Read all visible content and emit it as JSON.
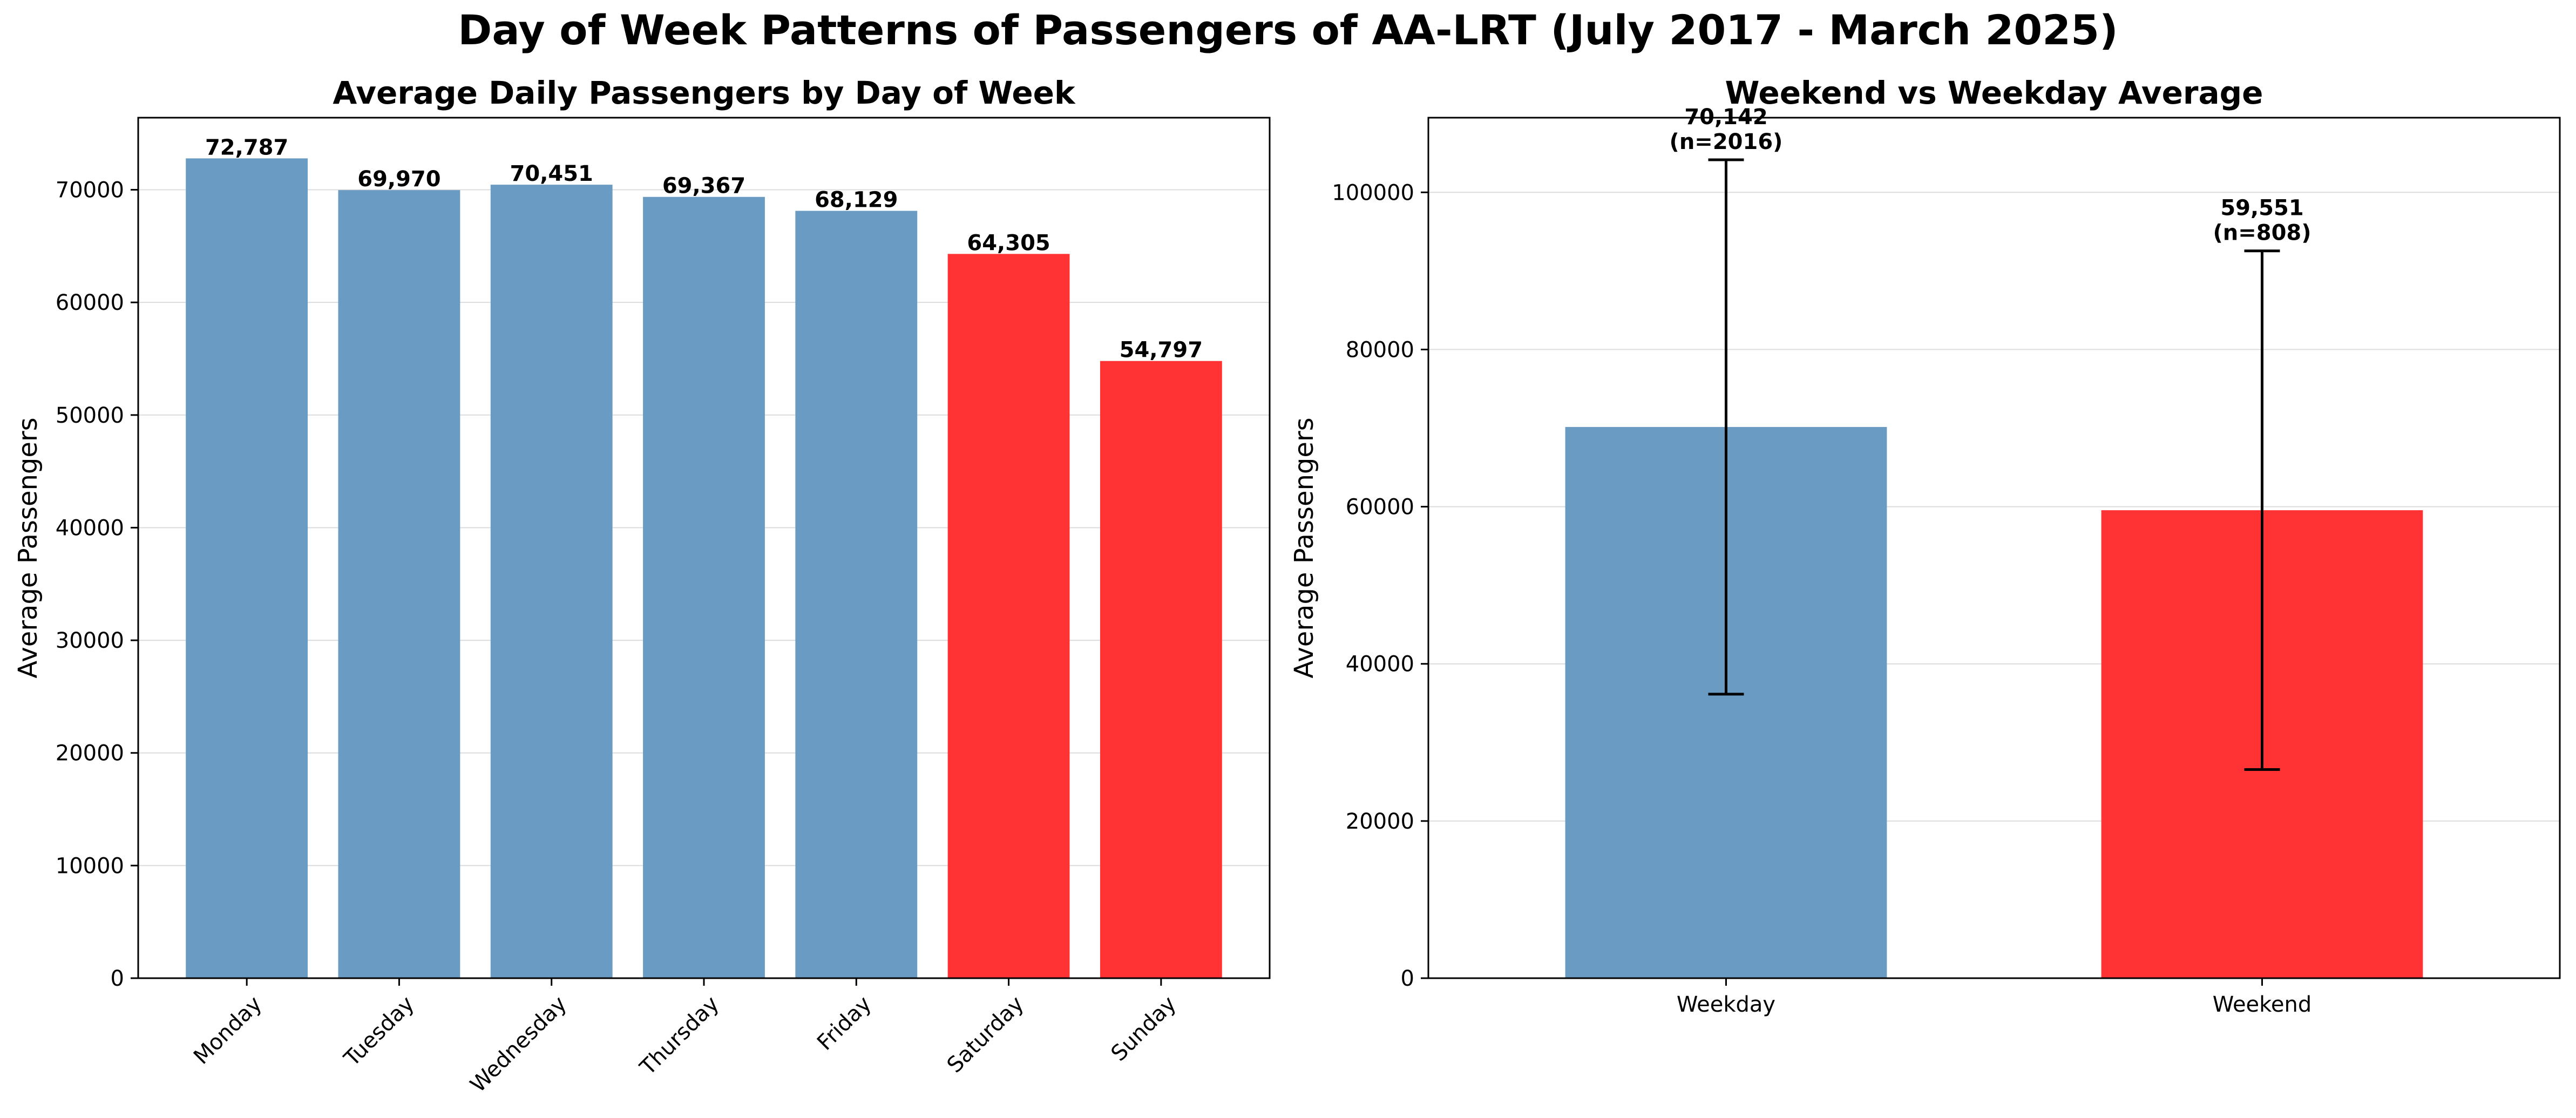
{
  "figure": {
    "suptitle": "Day of Week Patterns of Passengers of AA-LRT (July 2017 - March 2025)"
  },
  "chart_data": [
    {
      "type": "bar",
      "title": "Average Daily Passengers by Day of Week",
      "xlabel": "",
      "ylabel": "Average Passengers",
      "categories": [
        "Monday",
        "Tuesday",
        "Wednesday",
        "Thursday",
        "Friday",
        "Saturday",
        "Sunday"
      ],
      "values": [
        72787,
        69970,
        70451,
        69367,
        68129,
        64305,
        54797
      ],
      "data_labels": [
        "72,787",
        "69,970",
        "70,451",
        "69,367",
        "68,129",
        "64,305",
        "54,797"
      ],
      "bar_colors": [
        "#6a9bc3",
        "#6a9bc3",
        "#6a9bc3",
        "#6a9bc3",
        "#6a9bc3",
        "#ff3333",
        "#ff3333"
      ],
      "ylim": [
        0,
        76400
      ],
      "yticks": [
        0,
        10000,
        20000,
        30000,
        40000,
        50000,
        60000,
        70000
      ],
      "ytick_labels": [
        "0",
        "10000",
        "20000",
        "30000",
        "40000",
        "50000",
        "60000",
        "70000"
      ],
      "grid": "y",
      "legend": "none"
    },
    {
      "type": "bar",
      "title": "Weekend vs Weekday Average",
      "xlabel": "",
      "ylabel": "Average Passengers",
      "categories": [
        "Weekday",
        "Weekend"
      ],
      "values": [
        70142,
        59551
      ],
      "error": [
        34000,
        33000
      ],
      "data_labels": [
        "70,142",
        "59,551"
      ],
      "data_sublabels": [
        "(n=2016)",
        "(n=808)"
      ],
      "bar_colors": [
        "#6a9bc3",
        "#ff3333"
      ],
      "ylim": [
        0,
        109500
      ],
      "yticks": [
        0,
        20000,
        40000,
        60000,
        80000,
        100000
      ],
      "ytick_labels": [
        "0",
        "20000",
        "40000",
        "60000",
        "80000",
        "100000"
      ],
      "grid": "y",
      "legend": "none"
    }
  ]
}
